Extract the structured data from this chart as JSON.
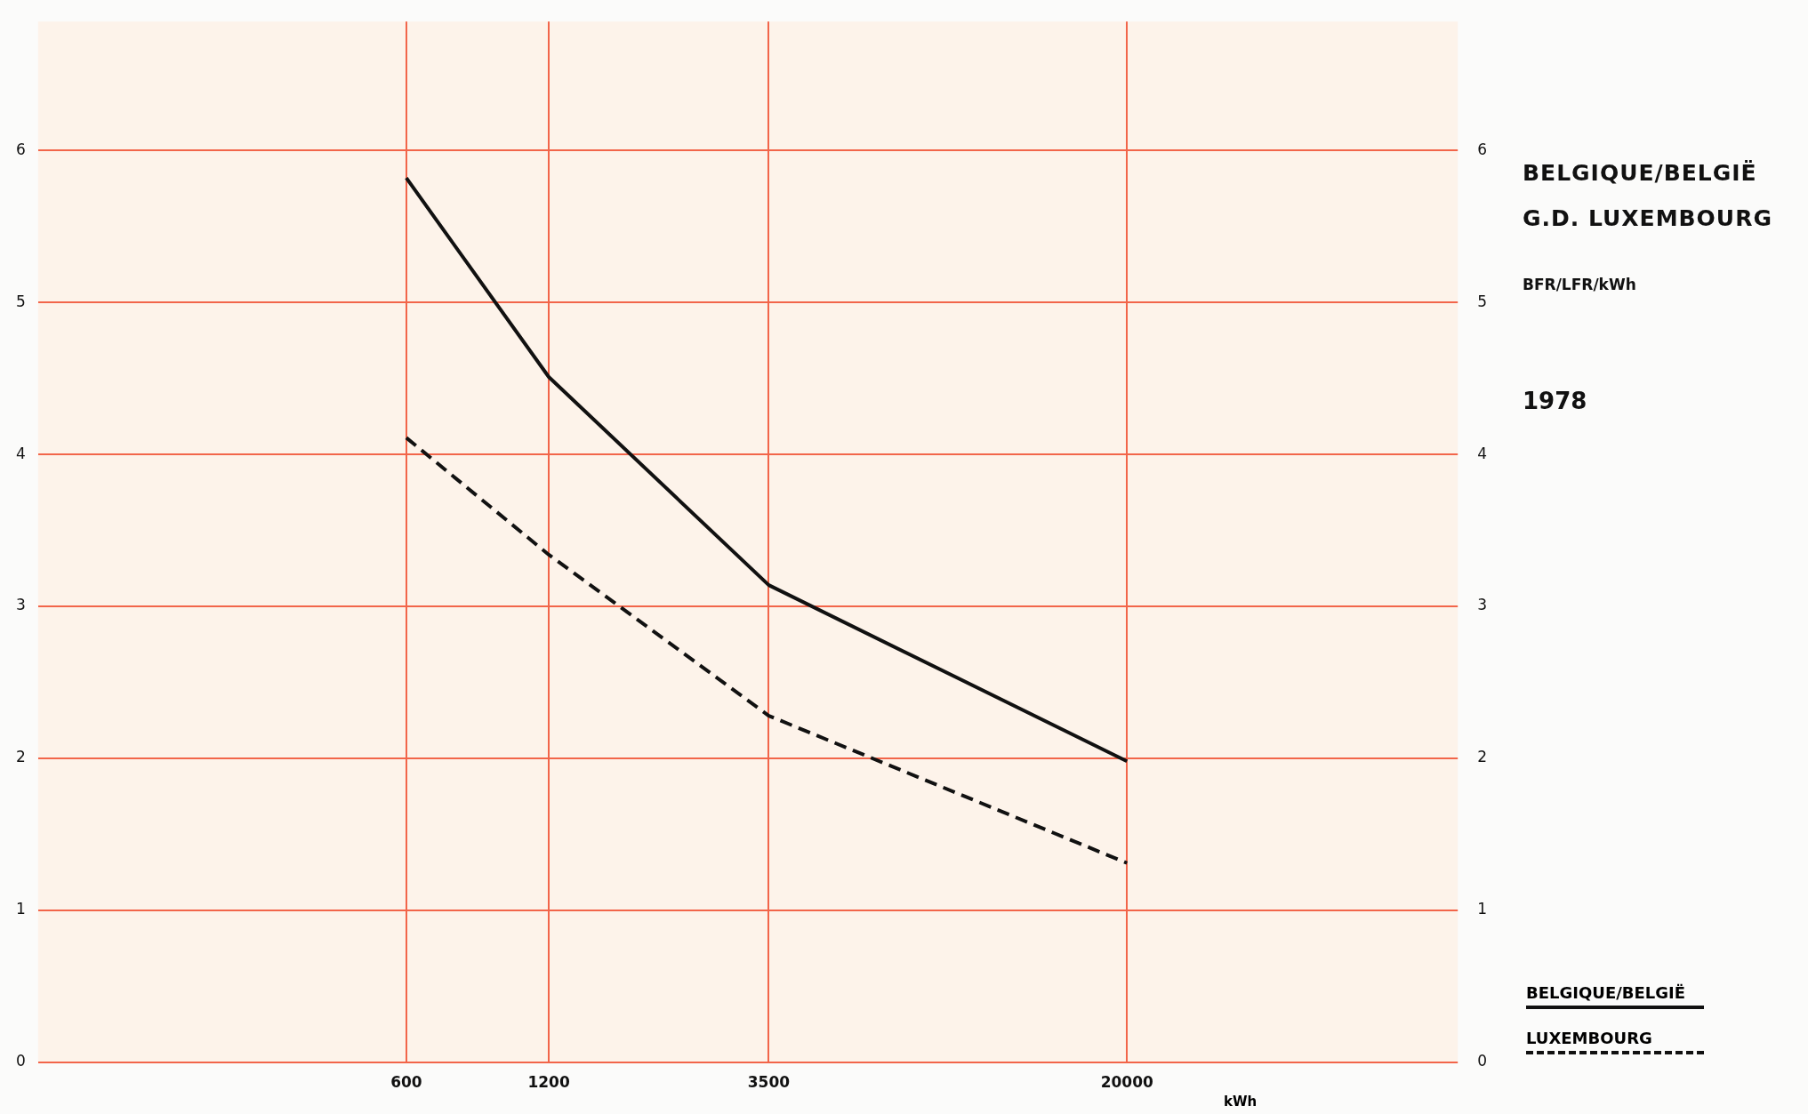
{
  "chart_data": {
    "type": "line",
    "title": "BELGIQUE/BELGIË",
    "subtitle": "G.D. LUXEMBOURG",
    "y2label": "BFR/LFR/kWh",
    "xlabel": "kWh",
    "annotations": [
      "1978"
    ],
    "x": [
      600,
      1200,
      3500,
      20000
    ],
    "log": "x",
    "xlim": [
      100,
      100000
    ],
    "xticks": [
      600,
      1200,
      3500,
      20000
    ],
    "ylim": [
      0,
      6.85
    ],
    "yticks": [
      0,
      1,
      2,
      3,
      4,
      5,
      6
    ],
    "y2lim": [
      0,
      6.85
    ],
    "y2ticks": [
      0,
      1,
      2,
      3,
      4,
      5,
      6
    ],
    "grid": true,
    "legend": "bottom right",
    "marker": "none",
    "series": [
      {
        "name": "BELGIQUE/BELGIË",
        "color": "#111111",
        "line_style": "solid",
        "values": [
          5.82,
          4.51,
          3.14,
          1.98
        ]
      },
      {
        "name": "LUXEMBOURG",
        "color": "#111111",
        "line_style": "dashed",
        "values": [
          4.11,
          3.34,
          2.28,
          1.31
        ]
      }
    ]
  }
}
